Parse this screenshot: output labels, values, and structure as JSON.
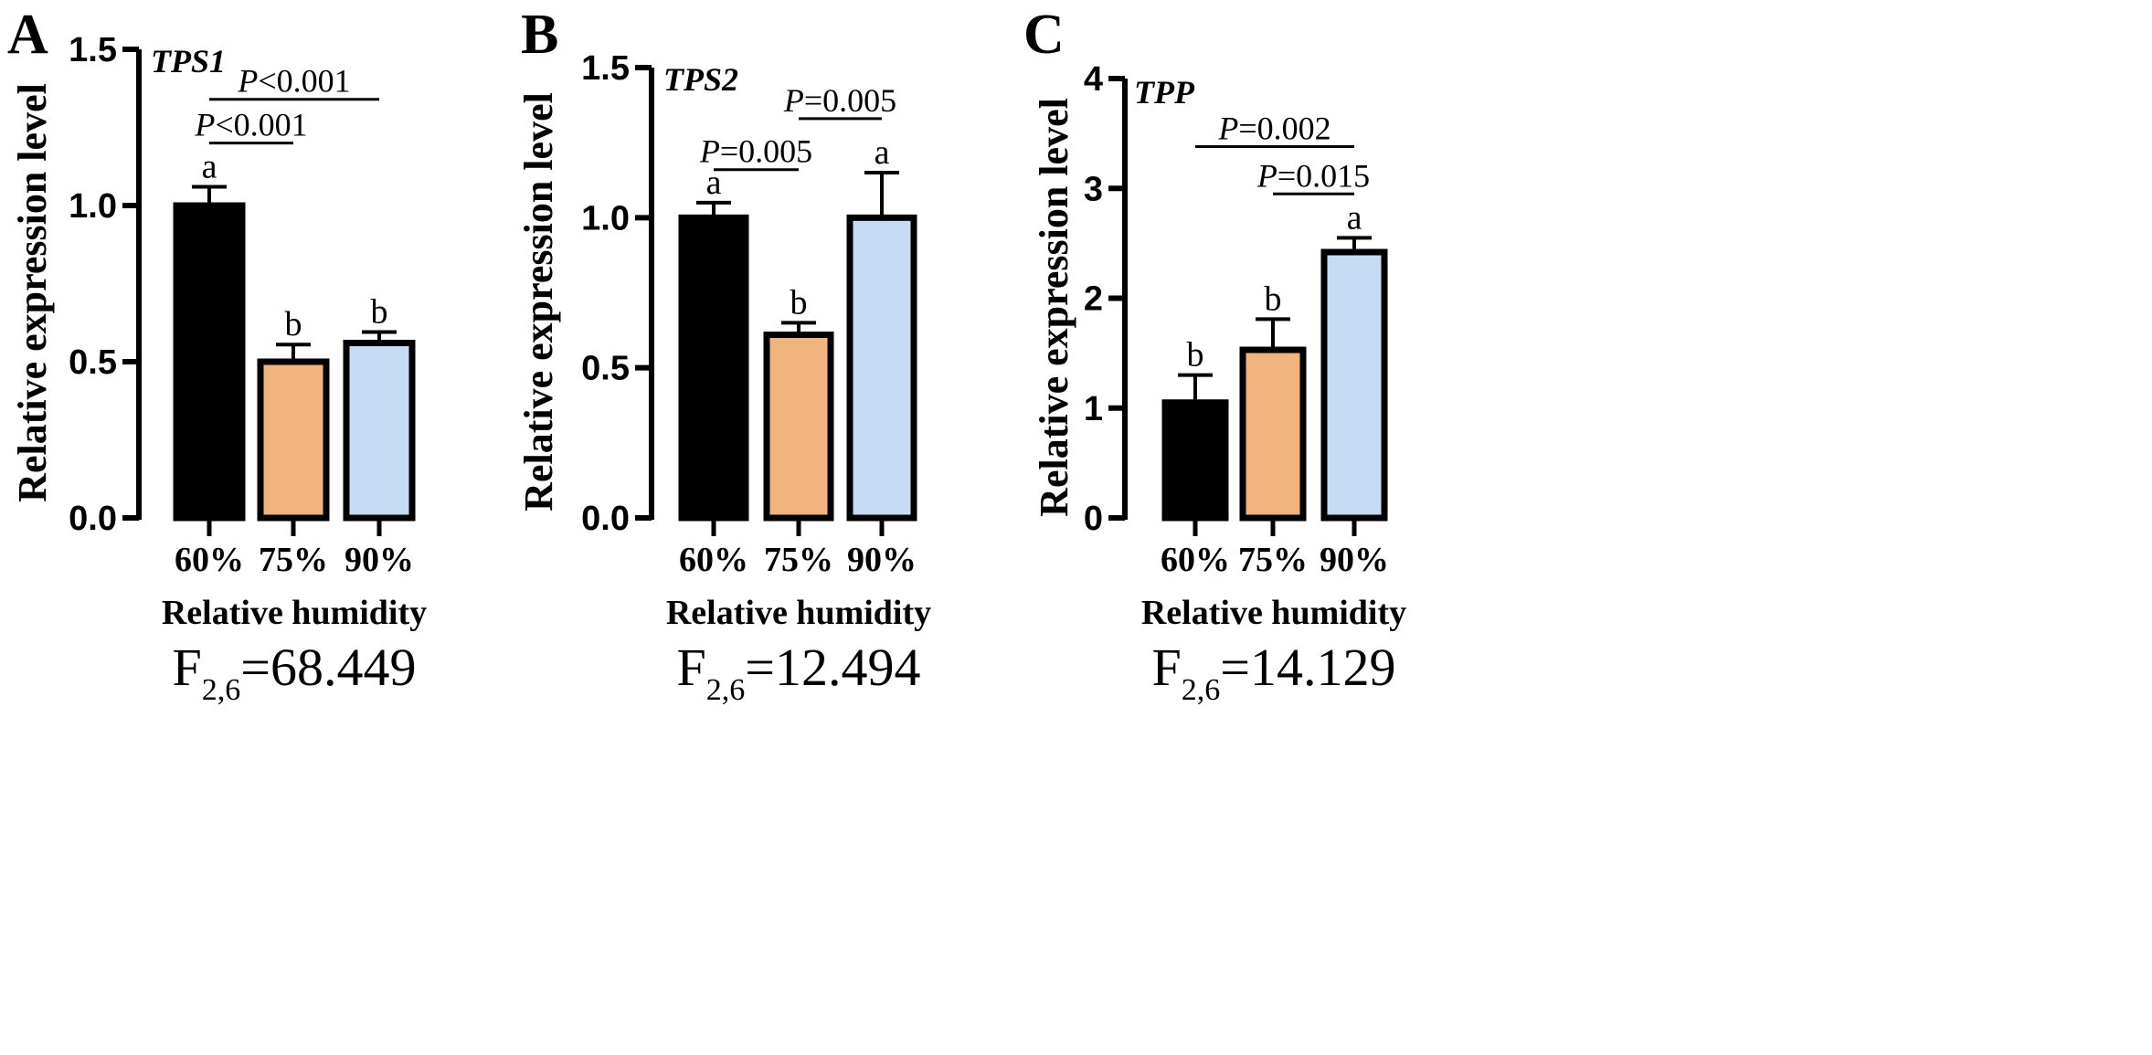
{
  "chart_data": [
    {
      "type": "bar",
      "panel_label": "A",
      "gene": "TPS1",
      "categories": [
        "60%",
        "75%",
        "90%"
      ],
      "values": [
        1.0,
        0.5,
        0.56
      ],
      "errors": [
        0.06,
        0.055,
        0.035
      ],
      "letters": [
        "a",
        "b",
        "b"
      ],
      "colors": [
        "#000000",
        "#F0B47C",
        "#C6DCF5"
      ],
      "ylabel": "Relative expression level",
      "xlabel": "Relative humidity",
      "ylim": [
        0,
        1.5
      ],
      "yticks": [
        "0.0",
        "0.5",
        "1.0",
        "1.5"
      ],
      "ytick_values": [
        0,
        0.5,
        1.0,
        1.5
      ],
      "comparisons": [
        {
          "from": 0,
          "to": 1,
          "y": 1.2,
          "p_italic": "P",
          "p_rest": "<0.001"
        },
        {
          "from": 0,
          "to": 2,
          "y": 1.34,
          "p_italic": "P",
          "p_rest": "<0.001"
        }
      ],
      "f_stat": {
        "base": "F",
        "sub": "2,6",
        "value": "=68.449"
      }
    },
    {
      "type": "bar",
      "panel_label": "B",
      "gene": "TPS2",
      "categories": [
        "60%",
        "75%",
        "90%"
      ],
      "values": [
        1.0,
        0.61,
        1.0
      ],
      "errors": [
        0.05,
        0.04,
        0.15
      ],
      "letters": [
        "a",
        "b",
        "a"
      ],
      "colors": [
        "#000000",
        "#F0B47C",
        "#C6DCF5"
      ],
      "ylabel": "Relative expression level",
      "xlabel": "Relative humidity",
      "ylim": [
        0,
        1.5
      ],
      "yticks": [
        "0.0",
        "0.5",
        "1.0",
        "1.5"
      ],
      "ytick_values": [
        0,
        0.5,
        1.0,
        1.5
      ],
      "comparisons": [
        {
          "from": 0,
          "to": 1,
          "y": 1.16,
          "p_italic": "P",
          "p_rest": "=0.005"
        },
        {
          "from": 1,
          "to": 2,
          "y": 1.33,
          "p_italic": "P",
          "p_rest": "=0.005"
        }
      ],
      "f_stat": {
        "base": "F",
        "sub": "2,6",
        "value": "=12.494"
      }
    },
    {
      "type": "bar",
      "panel_label": "C",
      "gene": "TPP",
      "categories": [
        "60%",
        "75%",
        "90%"
      ],
      "values": [
        1.05,
        1.53,
        2.42
      ],
      "errors": [
        0.25,
        0.28,
        0.13
      ],
      "letters": [
        "b",
        "b",
        "a"
      ],
      "colors": [
        "#000000",
        "#F0B47C",
        "#C6DCF5"
      ],
      "ylabel": "Relative expression level",
      "xlabel": "Relative humidity",
      "ylim": [
        0,
        4
      ],
      "yticks": [
        "0",
        "1",
        "2",
        "3",
        "4"
      ],
      "ytick_values": [
        0,
        1,
        2,
        3,
        4
      ],
      "comparisons": [
        {
          "from": 0,
          "to": 2,
          "y": 3.38,
          "p_italic": "P",
          "p_rest": "=0.002"
        },
        {
          "from": 1,
          "to": 2,
          "y": 2.95,
          "p_italic": "P",
          "p_rest": "=0.015"
        }
      ],
      "f_stat": {
        "base": "F",
        "sub": "2,6",
        "value": "=14.129"
      }
    }
  ]
}
